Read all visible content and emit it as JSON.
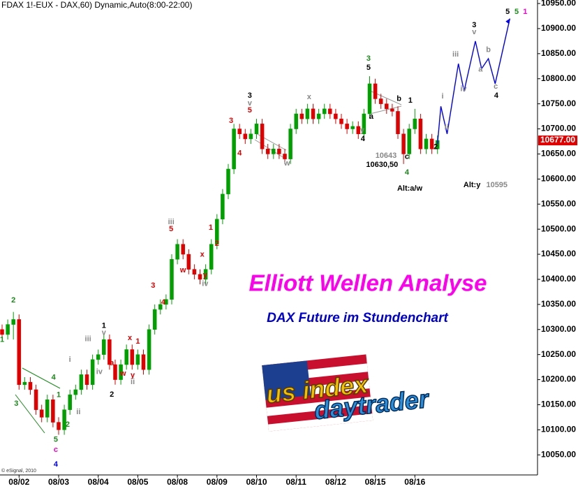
{
  "chart_data": {
    "type": "candlestick",
    "title": "FDAX 1!-EUX - DAX,60) Dynamic,Auto(8:00-22:00)",
    "headline": "Elliott Wellen Analyse",
    "subtitle": "DAX Future im Stundenchart",
    "credit": "© eSignal, 2010",
    "up_color": "#00a000",
    "down_color": "#e00000",
    "categories": [
      null,
      null,
      null,
      "08/02",
      null,
      null,
      null,
      null,
      null,
      null,
      "08/03",
      null,
      null,
      null,
      null,
      null,
      null,
      "08/04",
      null,
      null,
      null,
      null,
      null,
      null,
      "08/05",
      null,
      null,
      null,
      null,
      null,
      null,
      "08/08",
      null,
      null,
      null,
      null,
      null,
      null,
      "08/09",
      null,
      null,
      null,
      null,
      null,
      null,
      "08/10",
      null,
      null,
      null,
      null,
      null,
      null,
      "08/11",
      null,
      null,
      null,
      null,
      null,
      null,
      "08/12",
      null,
      null,
      null,
      null,
      null,
      null,
      "08/15",
      null,
      null,
      null,
      null,
      null,
      null,
      "08/16",
      null,
      null,
      null,
      null
    ],
    "open": [
      10300,
      10290,
      10310,
      10320,
      10190,
      10195,
      10180,
      10140,
      10125,
      10160,
      10115,
      10100,
      10140,
      10170,
      10180,
      10210,
      10190,
      10240,
      10250,
      10280,
      10230,
      10200,
      10230,
      10260,
      10230,
      10250,
      10220,
      10300,
      10340,
      10350,
      10360,
      10440,
      10470,
      10450,
      10420,
      10410,
      10400,
      10420,
      10470,
      10520,
      10570,
      10620,
      10700,
      10690,
      10680,
      10690,
      10710,
      10660,
      10650,
      10660,
      10650,
      10640,
      10700,
      10730,
      10720,
      10740,
      10720,
      10730,
      10740,
      10730,
      10720,
      10710,
      10700,
      10705,
      10690,
      10730,
      10790,
      10760,
      10750,
      10740,
      10735,
      10690,
      10650,
      10700,
      10720,
      10660,
      10680,
      10660
    ],
    "high": [
      10310,
      10320,
      10335,
      10330,
      10205,
      10205,
      10190,
      10150,
      10170,
      10170,
      10125,
      10150,
      10180,
      10190,
      10220,
      10220,
      10250,
      10260,
      10290,
      10290,
      10240,
      10240,
      10270,
      10270,
      10260,
      10260,
      10310,
      10350,
      10360,
      10370,
      10450,
      10480,
      10480,
      10460,
      10430,
      10420,
      10430,
      10480,
      10530,
      10580,
      10630,
      10710,
      10710,
      10700,
      10700,
      10720,
      10720,
      10670,
      10670,
      10670,
      10660,
      10710,
      10740,
      10740,
      10750,
      10750,
      10740,
      10750,
      10750,
      10740,
      10730,
      10720,
      10715,
      10715,
      10740,
      10805,
      10800,
      10770,
      10760,
      10750,
      10745,
      10700,
      10710,
      10740,
      10730,
      10690,
      10690,
      10687
    ],
    "low": [
      10280,
      10280,
      10280,
      10180,
      10180,
      10170,
      10130,
      10115,
      10115,
      10105,
      10090,
      10090,
      10130,
      10160,
      10170,
      10180,
      10180,
      10230,
      10240,
      10220,
      10190,
      10190,
      10220,
      10220,
      10220,
      10210,
      10210,
      10290,
      10330,
      10340,
      10350,
      10430,
      10440,
      10410,
      10400,
      10390,
      10390,
      10410,
      10460,
      10510,
      10560,
      10610,
      10680,
      10670,
      10670,
      10680,
      10650,
      10640,
      10640,
      10640,
      10630,
      10630,
      10690,
      10710,
      10710,
      10710,
      10710,
      10720,
      10720,
      10710,
      10700,
      10690,
      10690,
      10680,
      10680,
      10720,
      10750,
      10740,
      10730,
      10725,
      10680,
      10630,
      10640,
      10690,
      10650,
      10650,
      10650,
      10650
    ],
    "close": [
      10290,
      10310,
      10320,
      10190,
      10195,
      10180,
      10140,
      10125,
      10160,
      10115,
      10100,
      10140,
      10170,
      10180,
      10210,
      10190,
      10240,
      10250,
      10280,
      10230,
      10200,
      10230,
      10260,
      10230,
      10250,
      10220,
      10300,
      10340,
      10350,
      10360,
      10440,
      10470,
      10450,
      10420,
      10410,
      10400,
      10420,
      10470,
      10520,
      10570,
      10620,
      10700,
      10690,
      10680,
      10690,
      10710,
      10660,
      10650,
      10660,
      10650,
      10640,
      10700,
      10730,
      10720,
      10740,
      10720,
      10730,
      10740,
      10730,
      10720,
      10710,
      10700,
      10705,
      10690,
      10730,
      10790,
      10760,
      10750,
      10740,
      10735,
      10690,
      10650,
      10700,
      10720,
      10660,
      10680,
      10660,
      10677
    ],
    "forecast": {
      "color": "#0000ee",
      "x": [
        77,
        77.6,
        78.7,
        80.7,
        81.7,
        83.7,
        84.8,
        86,
        87.2,
        89.8
      ],
      "values": [
        10670,
        10745,
        10690,
        10830,
        10775,
        10875,
        10820,
        10840,
        10790,
        10920
      ]
    },
    "last_price": {
      "value": 10677,
      "label": "10677.00"
    },
    "ylim": [
      10010,
      10957
    ],
    "yticks": [
      {
        "value": 10050,
        "label": "10050.00"
      },
      {
        "value": 10100,
        "label": "10100.00"
      },
      {
        "value": 10150,
        "label": "10150.00"
      },
      {
        "value": 10200,
        "label": "10200.00"
      },
      {
        "value": 10250,
        "label": "10250.00"
      },
      {
        "value": 10300,
        "label": "10300.00"
      },
      {
        "value": 10350,
        "label": "10350.00"
      },
      {
        "value": 10400,
        "label": "10400.00"
      },
      {
        "value": 10450,
        "label": "10450.00"
      },
      {
        "value": 10500,
        "label": "10500.00"
      },
      {
        "value": 10550,
        "label": "10550.00"
      },
      {
        "value": 10600,
        "label": "10600.00"
      },
      {
        "value": 10650,
        "label": "10650.00"
      },
      {
        "value": 10700,
        "label": "10700.00"
      },
      {
        "value": 10750,
        "label": "10750.00"
      },
      {
        "value": 10800,
        "label": "10800.00"
      },
      {
        "value": 10850,
        "label": "10850.00"
      },
      {
        "value": 10900,
        "label": "10900.00"
      },
      {
        "value": 10950,
        "label": "10950.00"
      }
    ],
    "annotations": [
      {
        "text": "1",
        "color": "#1a8a1a",
        "x": 0,
        "y": 10279
      },
      {
        "text": "2",
        "color": "#1a8a1a",
        "x": 2,
        "y": 10358
      },
      {
        "text": "3",
        "color": "#1a8a1a",
        "x": 2.5,
        "y": 10152
      },
      {
        "text": "4",
        "color": "#1a8a1a",
        "x": 9.1,
        "y": 10204
      },
      {
        "text": "1",
        "color": "#1a8a1a",
        "x": 10,
        "y": 10169
      },
      {
        "text": "2",
        "color": "#1a8a1a",
        "x": 11.6,
        "y": 10110
      },
      {
        "text": "5",
        "color": "#1a8a1a",
        "x": 9.5,
        "y": 10080
      },
      {
        "text": "c",
        "color": "#ff00cc",
        "x": 9.5,
        "y": 10060
      },
      {
        "text": "4",
        "color": "#0000ff",
        "x": 9.5,
        "y": 10031,
        "style": "large"
      },
      {
        "text": "i",
        "color": "#888888",
        "x": 12,
        "y": 10240
      },
      {
        "text": "ii",
        "color": "#888888",
        "x": 13.5,
        "y": 10135
      },
      {
        "text": "iii",
        "color": "#888888",
        "x": 15.2,
        "y": 10281
      },
      {
        "text": "iv",
        "color": "#888888",
        "x": 17.2,
        "y": 10215
      },
      {
        "text": "v",
        "color": "#888888",
        "x": 18,
        "y": 10293
      },
      {
        "text": "1",
        "color": "#000000",
        "x": 18,
        "y": 10307
      },
      {
        "text": "2",
        "color": "#000000",
        "x": 19.4,
        "y": 10170
      },
      {
        "text": "a",
        "color": "#e00000",
        "x": 19.4,
        "y": 10233
      },
      {
        "text": "w",
        "color": "#e00000",
        "x": 21.4,
        "y": 10212
      },
      {
        "text": "x",
        "color": "#e00000",
        "x": 22.6,
        "y": 10283
      },
      {
        "text": "y",
        "color": "#e00000",
        "x": 23.1,
        "y": 10208
      },
      {
        "text": "ii",
        "color": "#888888",
        "x": 23.1,
        "y": 10195
      },
      {
        "text": "1",
        "color": "#e00000",
        "x": 24,
        "y": 10276
      },
      {
        "text": "2",
        "color": "#e00000",
        "x": 25,
        "y": 10230
      },
      {
        "text": "3",
        "color": "#e00000",
        "x": 26.7,
        "y": 10387
      },
      {
        "text": "4",
        "color": "#e00000",
        "x": 28.5,
        "y": 10354
      },
      {
        "text": "iii",
        "color": "#888888",
        "x": 29.9,
        "y": 10514
      },
      {
        "text": "5",
        "color": "#e00000",
        "x": 29.9,
        "y": 10500
      },
      {
        "text": "w",
        "color": "#e00000",
        "x": 32,
        "y": 10418
      },
      {
        "text": "x",
        "color": "#e00000",
        "x": 35.4,
        "y": 10449
      },
      {
        "text": "y",
        "color": "#e00000",
        "x": 35.9,
        "y": 10408
      },
      {
        "text": "iv",
        "color": "#888888",
        "x": 35.9,
        "y": 10391
      },
      {
        "text": "1",
        "color": "#e00000",
        "x": 36.9,
        "y": 10503
      },
      {
        "text": "2",
        "color": "#e00000",
        "x": 38,
        "y": 10471
      },
      {
        "text": "3",
        "color": "#e00000",
        "x": 40.5,
        "y": 10716
      },
      {
        "text": "4",
        "color": "#e00000",
        "x": 42,
        "y": 10651
      },
      {
        "text": "3",
        "color": "#000000",
        "x": 43.8,
        "y": 10766
      },
      {
        "text": "v",
        "color": "#888888",
        "x": 43.8,
        "y": 10751
      },
      {
        "text": "5",
        "color": "#e00000",
        "x": 43.8,
        "y": 10737
      },
      {
        "text": "w",
        "color": "#888888",
        "x": 50.4,
        "y": 10631
      },
      {
        "text": "x",
        "color": "#888888",
        "x": 54.3,
        "y": 10763
      },
      {
        "text": "3",
        "color": "#1a8a1a",
        "x": 64.8,
        "y": 10840
      },
      {
        "text": "5",
        "color": "#000000",
        "x": 64.8,
        "y": 10822
      },
      {
        "text": "a",
        "color": "#000000",
        "x": 65.3,
        "y": 10724
      },
      {
        "text": "y",
        "color": "#888888",
        "x": 63.7,
        "y": 10697
      },
      {
        "text": "4",
        "color": "#000000",
        "x": 63.8,
        "y": 10680
      },
      {
        "text": "b",
        "color": "#000000",
        "x": 70.2,
        "y": 10760
      },
      {
        "text": "1",
        "color": "#000000",
        "x": 72.2,
        "y": 10756
      },
      {
        "text": "c",
        "color": "#000000",
        "x": 71.6,
        "y": 10644
      },
      {
        "text": "4",
        "color": "#1a8a1a",
        "x": 71.6,
        "y": 10613
      },
      {
        "text": "2",
        "color": "#000000",
        "x": 76.7,
        "y": 10664
      },
      {
        "text": "10643",
        "color": "#888888",
        "x": 67.9,
        "y": 10646
      },
      {
        "text": "10630,50",
        "color": "#000000",
        "x": 67.2,
        "y": 10628
      },
      {
        "text": "Alt:a/w",
        "color": "#000000",
        "x": 72.1,
        "y": 10581
      },
      {
        "text": "Alt:y",
        "color": "#000000",
        "x": 83.1,
        "y": 10588
      },
      {
        "text": "10595",
        "color": "#888888",
        "x": 87.5,
        "y": 10588
      },
      {
        "text": "i",
        "color": "#888888",
        "x": 77.9,
        "y": 10765
      },
      {
        "text": "ii",
        "color": "#888888",
        "x": 78.6,
        "y": 10703
      },
      {
        "text": "iii",
        "color": "#888888",
        "x": 80.2,
        "y": 10848
      },
      {
        "text": "iv",
        "color": "#888888",
        "x": 81.6,
        "y": 10779
      },
      {
        "text": "v",
        "color": "#888888",
        "x": 83.5,
        "y": 10893
      },
      {
        "text": "3",
        "color": "#000000",
        "x": 83.5,
        "y": 10907
      },
      {
        "text": "a",
        "color": "#888888",
        "x": 84.6,
        "y": 10818
      },
      {
        "text": "b",
        "color": "#888888",
        "x": 86,
        "y": 10857
      },
      {
        "text": "c",
        "color": "#888888",
        "x": 87.3,
        "y": 10784
      },
      {
        "text": "4",
        "color": "#000000",
        "x": 87.4,
        "y": 10766
      },
      {
        "text": "5",
        "color": "#000000",
        "x": 89.4,
        "y": 10933
      },
      {
        "text": "5",
        "color": "#1a8a1a",
        "x": 91,
        "y": 10933
      },
      {
        "text": "1",
        "color": "#ff00cc",
        "x": 92.5,
        "y": 10933
      }
    ]
  },
  "logo": {
    "line1": "us index",
    "line2": "daytrader"
  }
}
